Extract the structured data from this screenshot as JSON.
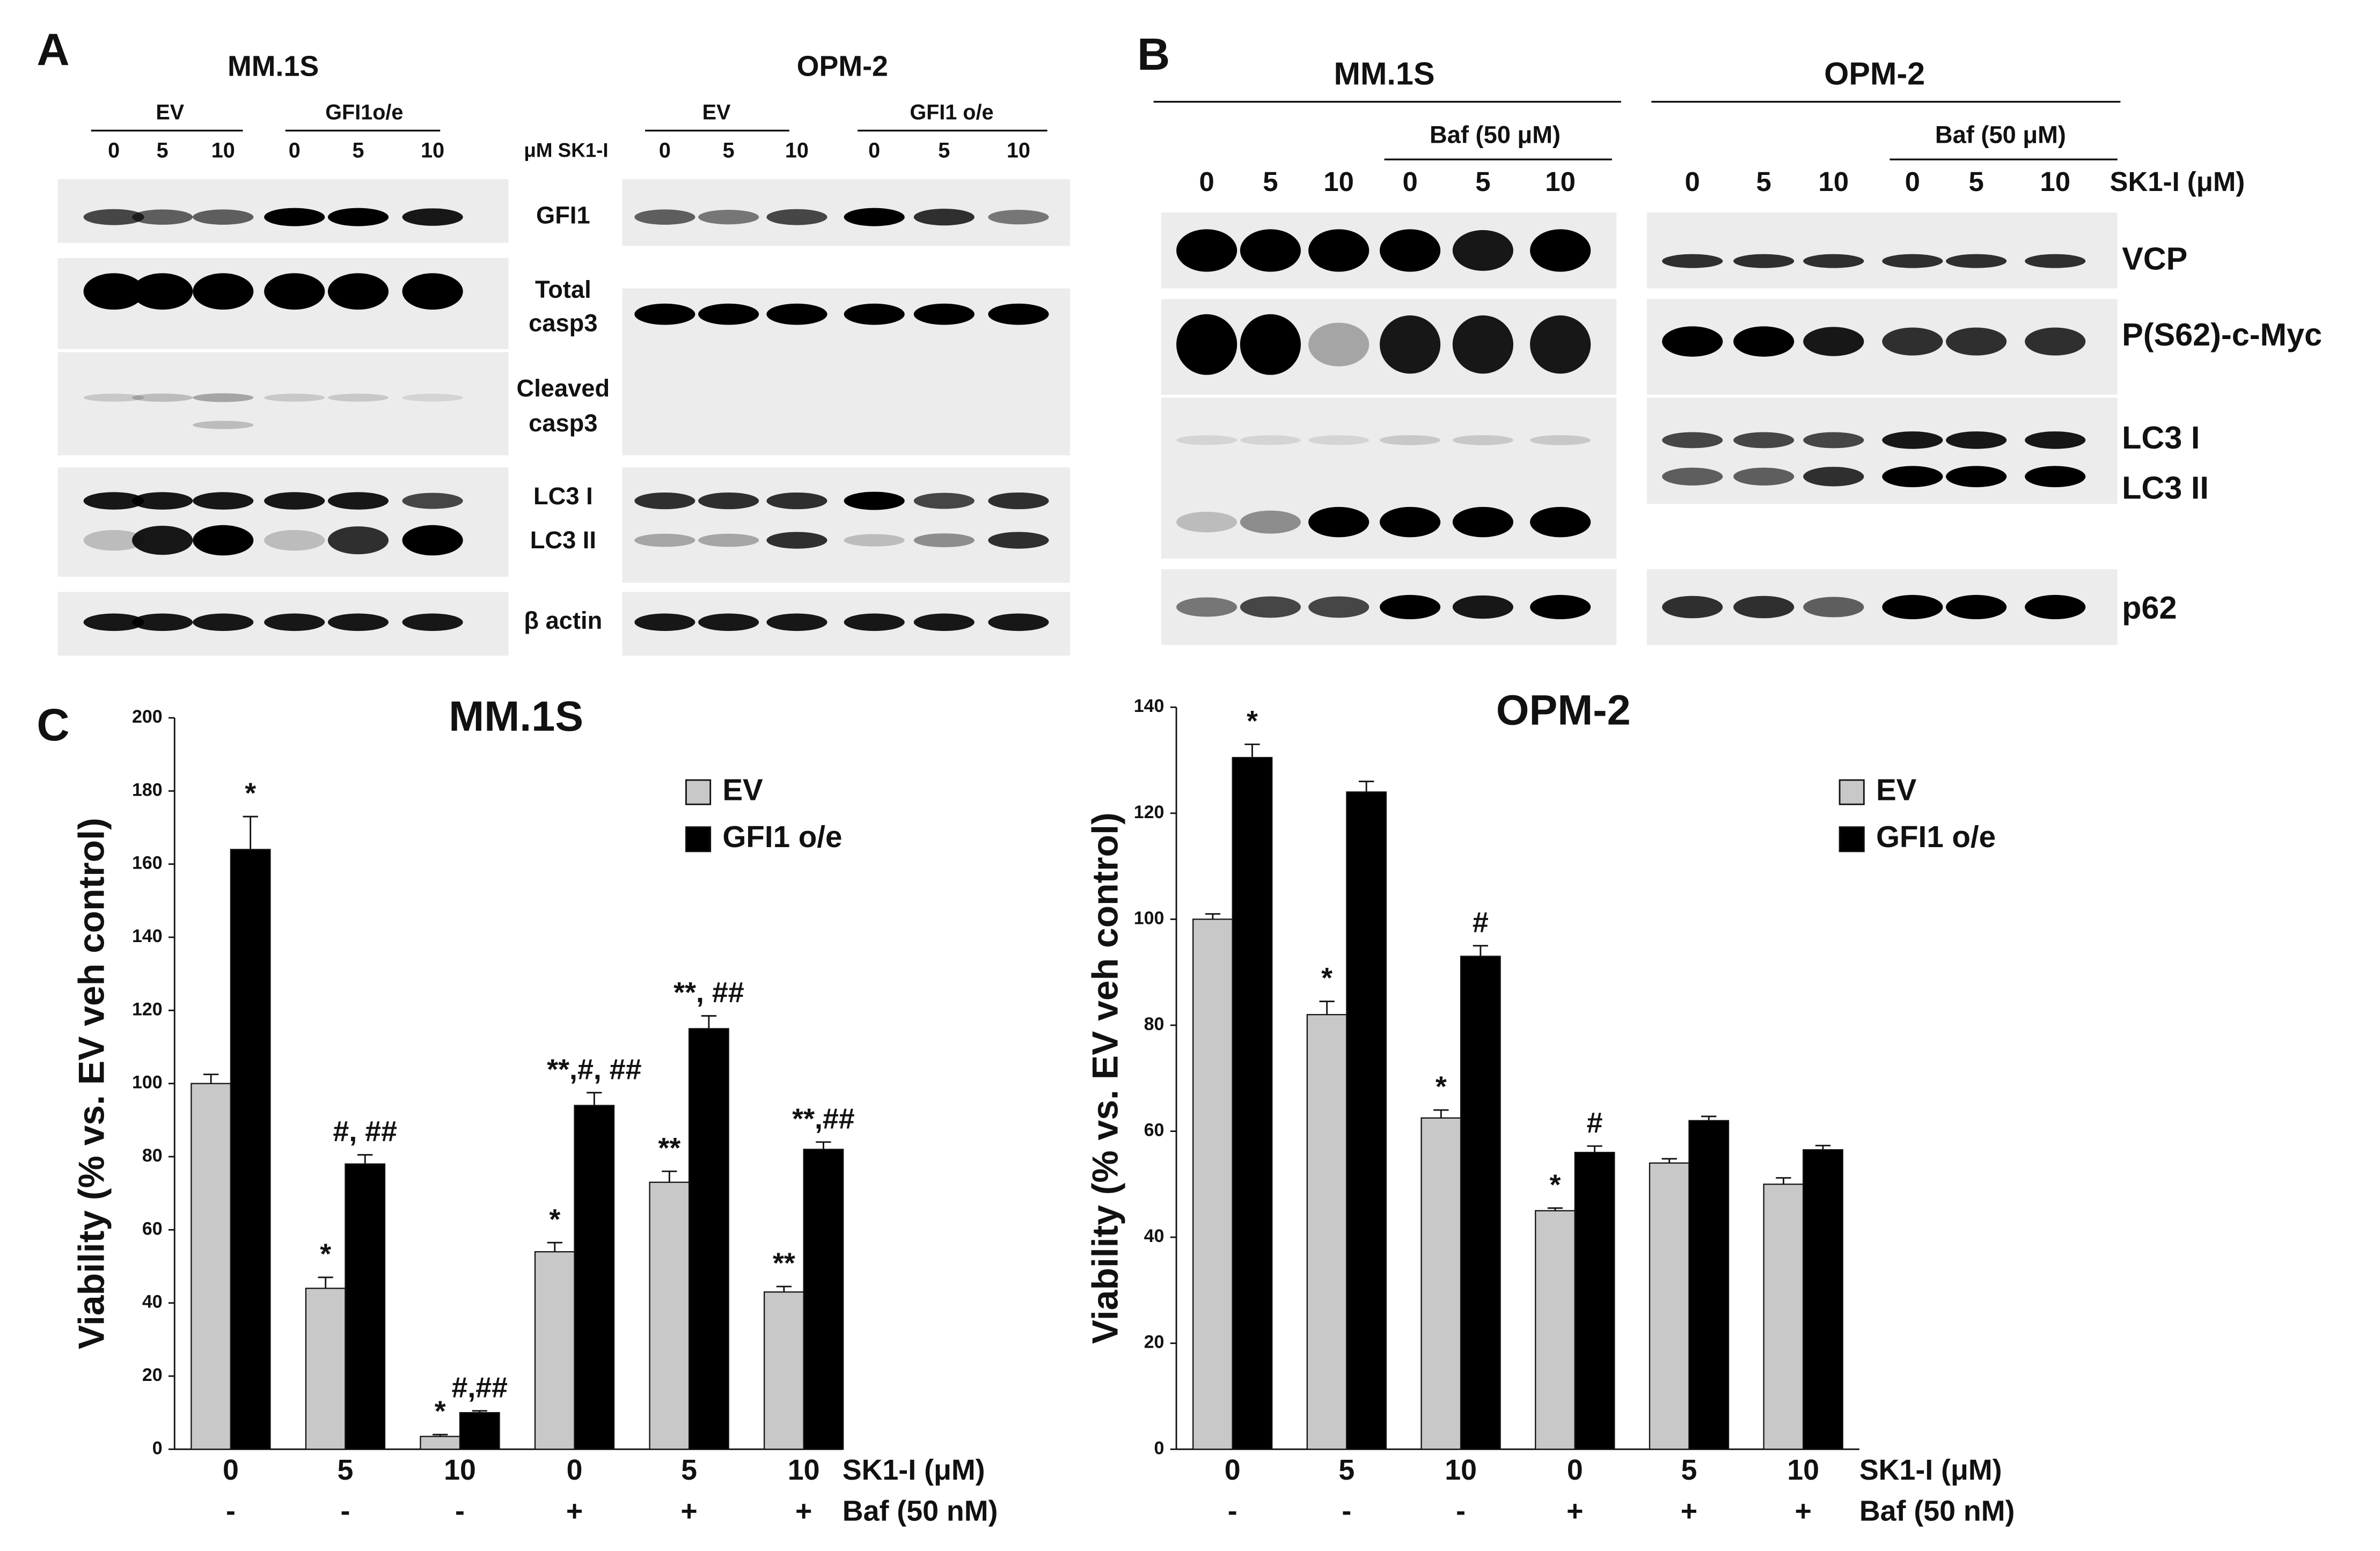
{
  "panel_labels": [
    "A",
    "B",
    "C"
  ],
  "blot_a": {
    "cell_lines": [
      "MM.1S",
      "OPM-2"
    ],
    "groups": [
      "EV",
      "GFI1o/e",
      "EV",
      "GFI1 o/e"
    ],
    "doses": [
      "0",
      "5",
      "10",
      "0",
      "5",
      "10",
      "0",
      "5",
      "10",
      "0",
      "5",
      "10"
    ],
    "dose_label": "μM SK1-I",
    "proteins": [
      "GFI1",
      "Total",
      "casp3",
      "Cleaved",
      "casp3",
      "LC3 I",
      "LC3 II",
      "β actin"
    ]
  },
  "blot_b": {
    "cell_lines": [
      "MM.1S",
      "OPM-2"
    ],
    "baf": [
      "Baf (50 μM)",
      "Baf (50 μM)"
    ],
    "doses": [
      "0",
      "5",
      "10",
      "0",
      "5",
      "10",
      "0",
      "5",
      "10",
      "0",
      "5",
      "10"
    ],
    "dose_label": "SK1-I (μM)",
    "proteins": [
      "VCP",
      "P(S62)-c-Myc",
      "LC3 I",
      "LC3 II",
      "p62"
    ]
  },
  "chart_data": [
    {
      "type": "bar",
      "title": "MM.1S",
      "y_label": "Viability (% vs. EV veh control)",
      "categories": [
        "0",
        "5",
        "10",
        "0",
        "5",
        "10"
      ],
      "categories2": [
        "-",
        "-",
        "-",
        "+",
        "+",
        "+"
      ],
      "x_row_labels": [
        "SK1-I (μM)",
        "Baf (50 nM)"
      ],
      "series": [
        {
          "name": "EV",
          "color": "#c8c8c8",
          "values": [
            100,
            44,
            3.5,
            54,
            73,
            43
          ],
          "errors": [
            2.5,
            3,
            0.5,
            2.5,
            3,
            1.5
          ],
          "labels": [
            null,
            "*",
            "*",
            "*",
            "**",
            "**"
          ]
        },
        {
          "name": "GFI1 o/e",
          "color": "#000000",
          "values": [
            164,
            78,
            10,
            94,
            115,
            82
          ],
          "errors": [
            9,
            2.5,
            0.5,
            3.5,
            3.5,
            2
          ],
          "labels": [
            "*",
            "#, ##",
            "#,##",
            "**,#, ##",
            "**, ##",
            "**,##"
          ]
        }
      ],
      "ylim": [
        0,
        200
      ],
      "yticks": [
        0,
        20,
        40,
        60,
        80,
        100,
        120,
        140,
        160,
        180,
        200
      ],
      "legend": "top-right"
    },
    {
      "type": "bar",
      "title": "OPM-2",
      "y_label": "Viability (% vs. EV veh control)",
      "categories": [
        "0",
        "5",
        "10",
        "0",
        "5",
        "10"
      ],
      "categories2": [
        "-",
        "-",
        "-",
        "+",
        "+",
        "+"
      ],
      "x_row_labels": [
        "SK1-I (μM)",
        "Baf (50 nM)"
      ],
      "series": [
        {
          "name": "EV",
          "color": "#c8c8c8",
          "values": [
            100,
            82,
            62.5,
            45,
            54,
            50
          ],
          "errors": [
            1,
            2.5,
            1.5,
            0.5,
            0.8,
            1.2
          ],
          "labels": [
            null,
            "*",
            "*",
            "*",
            null,
            null
          ]
        },
        {
          "name": "GFI1 o/e",
          "color": "#000000",
          "values": [
            130.5,
            124,
            93,
            56,
            62,
            56.5
          ],
          "errors": [
            2.5,
            2,
            2,
            1.2,
            0.8,
            0.8
          ],
          "labels": [
            "*",
            null,
            "#",
            "#",
            null,
            null
          ]
        }
      ],
      "ylim": [
        0,
        140
      ],
      "yticks": [
        0,
        20,
        40,
        60,
        80,
        100,
        120,
        140
      ],
      "legend": "top-right"
    }
  ]
}
